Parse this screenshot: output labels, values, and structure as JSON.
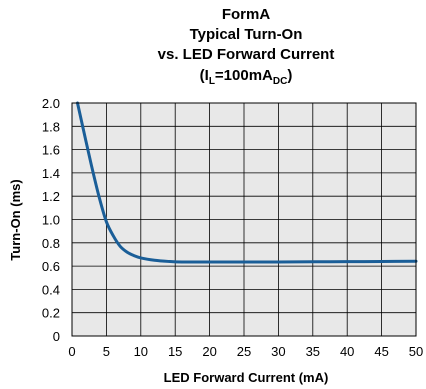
{
  "chart_data": {
    "type": "line",
    "title_lines": [
      "FormA",
      "Typical Turn-On",
      "vs. LED Forward Current"
    ],
    "condition": {
      "prefix": "(I",
      "sub1": "L",
      "mid": "=100mA",
      "sub2": "DC",
      "suffix": ")"
    },
    "xlabel": "LED Forward Current (mA)",
    "ylabel": "Turn-On (ms)",
    "xlim": [
      0,
      50
    ],
    "ylim": [
      0,
      2.0
    ],
    "x_ticks": [
      0,
      5,
      10,
      15,
      20,
      25,
      30,
      35,
      40,
      45,
      50
    ],
    "y_ticks": [
      "0",
      "0.2",
      "0.4",
      "0.6",
      "0.8",
      "1.0",
      "1.2",
      "1.4",
      "1.6",
      "1.8",
      "2.0"
    ],
    "grid": true,
    "line_color": "#1a5e98",
    "plot_background": "#e8e8e8",
    "series": [
      {
        "x": [
          0.8,
          2,
          3,
          4,
          5,
          6,
          7,
          8,
          9,
          10,
          12,
          14,
          16,
          20,
          25,
          30,
          35,
          40,
          45,
          50
        ],
        "values": [
          2.0,
          1.68,
          1.42,
          1.18,
          0.98,
          0.86,
          0.77,
          0.72,
          0.69,
          0.67,
          0.65,
          0.64,
          0.635,
          0.635,
          0.635,
          0.635,
          0.637,
          0.638,
          0.64,
          0.642
        ]
      }
    ]
  }
}
